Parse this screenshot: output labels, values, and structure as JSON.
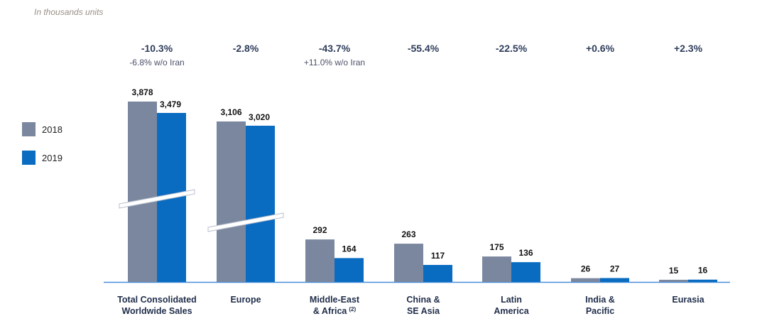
{
  "subtitle": "In thousands units",
  "colors": {
    "2018": "#7b879f",
    "2019": "#0a6cc1",
    "axis": "#4a90d9"
  },
  "legend": [
    {
      "label": "2018",
      "color_key": "2018"
    },
    {
      "label": "2019",
      "color_key": "2019"
    }
  ],
  "chart_data": {
    "type": "bar",
    "title": "",
    "xlabel": "",
    "ylabel": "",
    "units": "In thousands units",
    "axis_broken_categories": [
      "Total Consolidated Worldwide Sales",
      "Europe"
    ],
    "categories": [
      {
        "lines": [
          "Total Consolidated",
          "Worldwide Sales"
        ],
        "sup": ""
      },
      {
        "lines": [
          "Europe"
        ],
        "sup": ""
      },
      {
        "lines": [
          "Middle-East",
          "& Africa"
        ],
        "sup": "(2)"
      },
      {
        "lines": [
          "China &",
          "SE Asia"
        ],
        "sup": ""
      },
      {
        "lines": [
          "Latin",
          "America"
        ],
        "sup": ""
      },
      {
        "lines": [
          "India &",
          "Pacific"
        ],
        "sup": ""
      },
      {
        "lines": [
          "Eurasia"
        ],
        "sup": ""
      }
    ],
    "series": [
      {
        "name": "2018",
        "values": [
          3878,
          3106,
          292,
          263,
          175,
          26,
          15
        ],
        "labels": [
          "3,878",
          "3,106",
          "292",
          "263",
          "175",
          "26",
          "15"
        ]
      },
      {
        "name": "2019",
        "values": [
          3479,
          3020,
          164,
          117,
          136,
          27,
          16
        ],
        "labels": [
          "3,479",
          "3,020",
          "164",
          "117",
          "136",
          "27",
          "16"
        ]
      }
    ],
    "changes": [
      {
        "pct": "-10.3%",
        "note": "-6.8% w/o Iran"
      },
      {
        "pct": "-2.8%",
        "note": ""
      },
      {
        "pct": "-43.7%",
        "note": "+11.0% w/o Iran"
      },
      {
        "pct": "-55.4%",
        "note": ""
      },
      {
        "pct": "-22.5%",
        "note": ""
      },
      {
        "pct": "+0.6%",
        "note": ""
      },
      {
        "pct": "+2.3%",
        "note": ""
      }
    ]
  }
}
